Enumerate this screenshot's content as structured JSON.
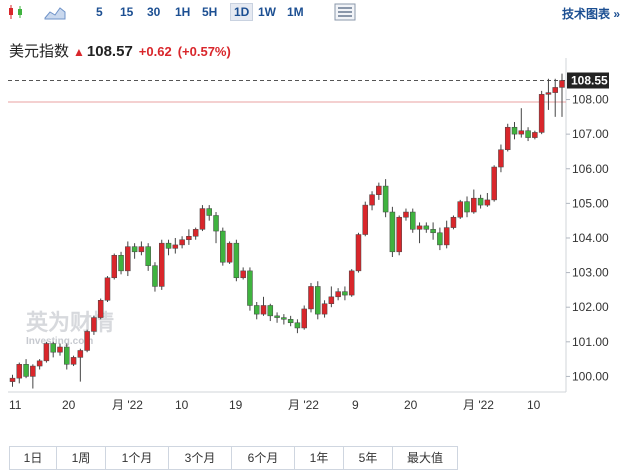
{
  "toolbar": {
    "chart_type_icons": [
      "candlestick-icon",
      "area-chart-icon"
    ],
    "timeframes": [
      "5",
      "15",
      "30",
      "1H",
      "5H",
      "1D",
      "1W",
      "1M"
    ],
    "active_timeframe": "1D",
    "settings_icon": "panel-icon",
    "technical_chart_link": "技术图表 »"
  },
  "quote": {
    "name": "美元指数",
    "price": "108.57",
    "change": "+0.62",
    "change_pct": "(+0.57%)",
    "direction_icon": "up-arrow-icon"
  },
  "watermark": {
    "text": "英为财情",
    "subtext": "Investing.com"
  },
  "colors": {
    "up": "#d9262b",
    "down": "#3fb33f",
    "accent": "#1c4f92",
    "last_line": "#e8a0a0"
  },
  "chart_data": {
    "type": "candlestick",
    "y_ticks": [
      "100.00",
      "101.00",
      "102.00",
      "103.00",
      "104.00",
      "105.00",
      "106.00",
      "107.00",
      "108.00"
    ],
    "ylim": [
      99.55,
      109.2
    ],
    "x_tick_labels": [
      "11",
      "20",
      "月 '22",
      "10",
      "19",
      "月 '22",
      "9",
      "20",
      "月 '22",
      "10"
    ],
    "last_price_label": "108.55",
    "grid": false,
    "candles": [
      [
        99.85,
        99.95,
        99.7,
        100.05
      ],
      [
        99.95,
        100.35,
        99.8,
        100.4
      ],
      [
        100.35,
        100.0,
        99.95,
        100.5
      ],
      [
        100.0,
        100.3,
        99.65,
        100.35
      ],
      [
        100.3,
        100.45,
        100.2,
        100.5
      ],
      [
        100.45,
        100.95,
        100.4,
        101.0
      ],
      [
        100.95,
        100.7,
        100.55,
        101.0
      ],
      [
        100.7,
        100.85,
        100.6,
        100.95
      ],
      [
        100.85,
        100.35,
        100.2,
        100.95
      ],
      [
        100.35,
        100.55,
        100.3,
        100.6
      ],
      [
        100.55,
        100.75,
        99.85,
        100.8
      ],
      [
        100.75,
        101.3,
        100.7,
        101.35
      ],
      [
        101.3,
        101.7,
        101.2,
        101.75
      ],
      [
        101.7,
        102.2,
        101.65,
        102.25
      ],
      [
        102.2,
        102.85,
        102.15,
        102.9
      ],
      [
        102.85,
        103.5,
        102.8,
        103.55
      ],
      [
        103.5,
        103.05,
        102.95,
        103.6
      ],
      [
        103.05,
        103.75,
        102.9,
        103.9
      ],
      [
        103.75,
        103.6,
        103.4,
        103.85
      ],
      [
        103.6,
        103.75,
        103.5,
        103.9
      ],
      [
        103.75,
        103.2,
        103.05,
        103.85
      ],
      [
        103.2,
        102.6,
        102.45,
        103.3
      ],
      [
        102.6,
        103.85,
        102.5,
        103.95
      ],
      [
        103.85,
        103.7,
        103.5,
        103.95
      ],
      [
        103.7,
        103.8,
        103.55,
        104.0
      ],
      [
        103.8,
        103.95,
        103.7,
        104.05
      ],
      [
        103.95,
        104.05,
        103.8,
        104.25
      ],
      [
        104.05,
        104.25,
        103.95,
        104.3
      ],
      [
        104.25,
        104.85,
        104.2,
        104.95
      ],
      [
        104.85,
        104.65,
        104.5,
        104.95
      ],
      [
        104.65,
        104.2,
        103.85,
        104.75
      ],
      [
        104.2,
        103.3,
        103.2,
        104.3
      ],
      [
        103.3,
        103.85,
        103.25,
        103.9
      ],
      [
        103.85,
        102.85,
        102.75,
        103.95
      ],
      [
        102.85,
        103.05,
        102.8,
        103.15
      ],
      [
        103.05,
        102.05,
        101.9,
        103.15
      ],
      [
        102.05,
        101.8,
        101.65,
        102.15
      ],
      [
        101.8,
        102.05,
        101.75,
        102.3
      ],
      [
        102.05,
        101.75,
        101.6,
        102.1
      ],
      [
        101.75,
        101.7,
        101.55,
        101.85
      ],
      [
        101.7,
        101.65,
        101.5,
        101.8
      ],
      [
        101.65,
        101.55,
        101.45,
        101.75
      ],
      [
        101.55,
        101.4,
        101.25,
        101.65
      ],
      [
        101.4,
        101.95,
        101.35,
        102.05
      ],
      [
        101.95,
        102.6,
        101.85,
        102.7
      ],
      [
        102.6,
        101.8,
        101.65,
        102.75
      ],
      [
        101.8,
        102.1,
        101.7,
        102.2
      ],
      [
        102.1,
        102.3,
        102.0,
        102.6
      ],
      [
        102.3,
        102.45,
        102.2,
        102.55
      ],
      [
        102.45,
        102.35,
        102.2,
        102.6
      ],
      [
        102.35,
        103.05,
        102.3,
        103.1
      ],
      [
        103.05,
        104.1,
        103.0,
        104.15
      ],
      [
        104.1,
        104.95,
        104.05,
        105.05
      ],
      [
        104.95,
        105.25,
        104.8,
        105.35
      ],
      [
        105.25,
        105.5,
        105.1,
        105.6
      ],
      [
        105.5,
        104.75,
        104.6,
        105.7
      ],
      [
        104.75,
        103.6,
        103.45,
        104.9
      ],
      [
        103.6,
        104.6,
        103.5,
        104.65
      ],
      [
        104.6,
        104.75,
        104.5,
        104.85
      ],
      [
        104.75,
        104.25,
        104.15,
        104.85
      ],
      [
        104.25,
        104.35,
        103.85,
        104.45
      ],
      [
        104.35,
        104.25,
        104.15,
        104.45
      ],
      [
        104.25,
        104.15,
        103.95,
        104.45
      ],
      [
        104.15,
        103.8,
        103.65,
        104.3
      ],
      [
        103.8,
        104.3,
        103.7,
        104.5
      ],
      [
        104.3,
        104.6,
        104.25,
        104.65
      ],
      [
        104.6,
        105.05,
        104.55,
        105.1
      ],
      [
        105.05,
        104.75,
        104.6,
        105.2
      ],
      [
        104.75,
        105.15,
        104.7,
        105.4
      ],
      [
        105.15,
        104.95,
        104.85,
        105.25
      ],
      [
        104.95,
        105.1,
        104.9,
        105.3
      ],
      [
        105.1,
        106.05,
        105.05,
        106.1
      ],
      [
        106.05,
        106.55,
        105.9,
        106.7
      ],
      [
        106.55,
        107.2,
        106.5,
        107.3
      ],
      [
        107.2,
        107.0,
        106.85,
        107.35
      ],
      [
        107.0,
        107.1,
        106.9,
        107.75
      ],
      [
        107.1,
        106.9,
        106.8,
        107.2
      ],
      [
        106.9,
        107.05,
        106.85,
        107.1
      ],
      [
        107.05,
        108.15,
        107.0,
        108.25
      ],
      [
        108.15,
        108.2,
        107.7,
        108.6
      ],
      [
        108.2,
        108.35,
        107.5,
        108.6
      ],
      [
        108.35,
        108.55,
        107.5,
        108.75
      ]
    ]
  },
  "ranges": [
    "1日",
    "1周",
    "1个月",
    "3个月",
    "6个月",
    "1年",
    "5年",
    "最大值"
  ]
}
